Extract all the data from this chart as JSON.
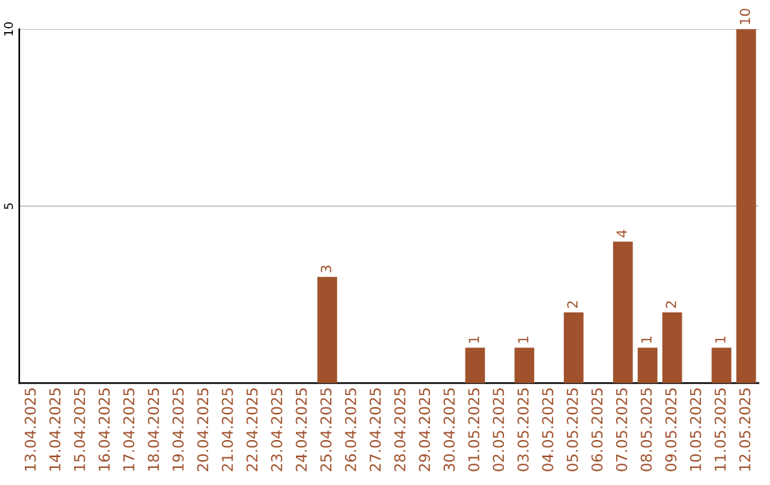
{
  "chart_data": {
    "type": "bar",
    "categories": [
      "13.04.2025",
      "14.04.2025",
      "15.04.2025",
      "16.04.2025",
      "17.04.2025",
      "18.04.2025",
      "19.04.2025",
      "20.04.2025",
      "21.04.2025",
      "22.04.2025",
      "23.04.2025",
      "24.04.2025",
      "25.04.2025",
      "26.04.2025",
      "27.04.2025",
      "28.04.2025",
      "29.04.2025",
      "30.04.2025",
      "01.05.2025",
      "02.05.2025",
      "03.05.2025",
      "04.05.2025",
      "05.05.2025",
      "06.05.2025",
      "07.05.2025",
      "08.05.2025",
      "09.05.2025",
      "10.05.2025",
      "11.05.2025",
      "12.05.2025"
    ],
    "values": [
      0,
      0,
      0,
      0,
      0,
      0,
      0,
      0,
      0,
      0,
      0,
      0,
      3,
      0,
      0,
      0,
      0,
      0,
      1,
      0,
      1,
      0,
      2,
      0,
      4,
      1,
      2,
      0,
      1,
      10
    ],
    "value_labels": [
      null,
      null,
      null,
      null,
      null,
      null,
      null,
      null,
      null,
      null,
      null,
      null,
      "3",
      null,
      null,
      null,
      null,
      null,
      "1",
      null,
      "1",
      null,
      "2",
      null,
      "4",
      "1",
      "2",
      null,
      "1",
      "10"
    ],
    "color": "#a0522d",
    "ylim": [
      0,
      10
    ],
    "yticks": [
      5,
      10
    ],
    "grid": "y",
    "legend": false
  }
}
